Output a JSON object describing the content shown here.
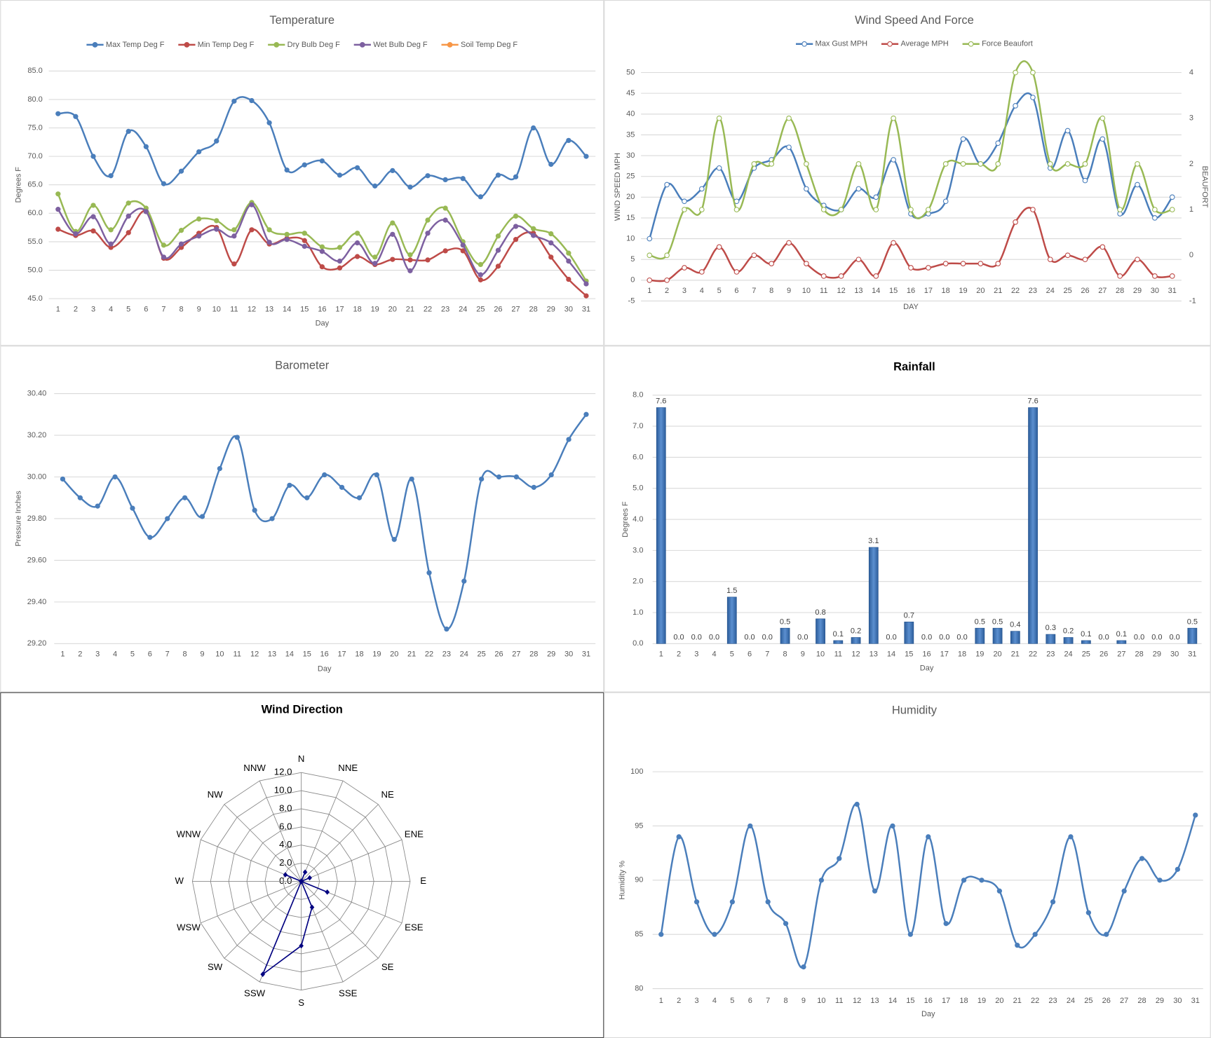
{
  "chart_data": [
    {
      "type": "line",
      "title": "Temperature",
      "x_label": "Day",
      "y_label": "Degrees F",
      "legend": "top",
      "grid": true,
      "categories": [
        1,
        2,
        3,
        4,
        5,
        6,
        7,
        8,
        9,
        10,
        11,
        12,
        13,
        14,
        15,
        16,
        17,
        18,
        19,
        20,
        21,
        22,
        23,
        24,
        25,
        26,
        27,
        28,
        29,
        30,
        31
      ],
      "ylim": [
        45,
        85
      ],
      "yticks": [
        {
          "value": 45,
          "label": "45.0"
        },
        {
          "value": 50,
          "label": "50.0"
        },
        {
          "value": 55,
          "label": "55.0"
        },
        {
          "value": 60,
          "label": "60.0"
        },
        {
          "value": 65,
          "label": "65.0"
        },
        {
          "value": 70,
          "label": "70.0"
        },
        {
          "value": 75,
          "label": "75.0"
        },
        {
          "value": 80,
          "label": "80.0"
        },
        {
          "value": 85,
          "label": "85.0"
        }
      ],
      "series": [
        {
          "name": "Max Temp Deg F",
          "color": "#4a7ebb",
          "values": [
            77.5,
            77.0,
            70.0,
            66.6,
            74.4,
            71.7,
            65.2,
            67.4,
            70.8,
            72.7,
            79.7,
            79.8,
            75.9,
            67.6,
            68.5,
            69.2,
            66.7,
            68.0,
            64.8,
            67.5,
            64.6,
            66.6,
            65.9,
            66.1,
            62.9,
            66.7,
            66.4,
            75.0,
            68.6,
            72.8,
            70.0
          ]
        },
        {
          "name": "Min Temp Deg F",
          "color": "#be4b48",
          "values": [
            57.2,
            56.1,
            56.9,
            54.0,
            56.6,
            60.3,
            52.1,
            54.0,
            56.5,
            57.5,
            51.1,
            57.1,
            54.6,
            55.6,
            55.2,
            50.6,
            50.4,
            52.4,
            51.0,
            51.9,
            51.8,
            51.8,
            53.4,
            53.4,
            48.3,
            50.7,
            55.4,
            56.5,
            52.3,
            48.4,
            45.5
          ]
        },
        {
          "name": "Dry Bulb Deg F",
          "color": "#98b954",
          "values": [
            63.4,
            56.8,
            61.4,
            57.1,
            61.8,
            60.9,
            54.4,
            57.0,
            59.0,
            58.7,
            57.1,
            61.9,
            57.1,
            56.3,
            56.5,
            54.1,
            54.0,
            56.5,
            52.3,
            58.3,
            52.7,
            58.8,
            60.9,
            55.0,
            51.0,
            56.0,
            59.5,
            57.3,
            56.4,
            53.0,
            48.1
          ]
        },
        {
          "name": "Wet Bulb Deg F",
          "color": "#7d60a0",
          "values": [
            60.7,
            56.4,
            59.4,
            54.6,
            59.5,
            60.3,
            52.3,
            54.6,
            56.0,
            57.2,
            56.0,
            61.5,
            54.9,
            55.4,
            54.2,
            53.3,
            51.6,
            54.8,
            51.2,
            56.3,
            49.9,
            56.5,
            58.8,
            54.4,
            49.2,
            53.5,
            57.7,
            56.1,
            54.8,
            51.6,
            47.6
          ]
        },
        {
          "name": "Soil Temp Deg F",
          "color": "#f79646",
          "values": [
            null,
            null,
            null,
            null,
            null,
            null,
            null,
            null,
            null,
            null,
            null,
            null,
            null,
            null,
            null,
            null,
            null,
            null,
            null,
            null,
            null,
            null,
            null,
            null,
            null,
            null,
            null,
            null,
            null,
            null,
            null
          ]
        }
      ]
    },
    {
      "type": "line",
      "title": "Wind Speed And Force",
      "x_label": "DAY",
      "y_label": "WIND SPEED MPH",
      "y2_label": "BEAUFORT",
      "legend": "top",
      "grid": true,
      "categories": [
        1,
        2,
        3,
        4,
        5,
        6,
        7,
        8,
        9,
        10,
        11,
        12,
        13,
        14,
        15,
        16,
        17,
        18,
        19,
        20,
        21,
        22,
        23,
        24,
        25,
        26,
        27,
        28,
        29,
        30,
        31
      ],
      "ylim": [
        -5,
        50
      ],
      "yticks": [
        -5,
        0,
        5,
        10,
        15,
        20,
        25,
        30,
        35,
        40,
        45,
        50
      ],
      "y2lim": [
        -1,
        4
      ],
      "y2ticks": [
        -1,
        0,
        1,
        2,
        3,
        4
      ],
      "series": [
        {
          "name": "Max Gust MPH",
          "color": "#4a7ebb",
          "values": [
            10,
            23,
            19,
            22,
            27,
            19,
            27,
            29,
            32,
            22,
            18,
            17,
            22,
            20,
            29,
            16,
            16,
            19,
            34,
            28,
            33,
            42,
            44,
            27,
            36,
            24,
            34,
            16,
            23,
            15,
            20
          ]
        },
        {
          "name": "Average MPH",
          "color": "#be4b48",
          "values": [
            0,
            0,
            3,
            2,
            8,
            2,
            6,
            4,
            9,
            4,
            1,
            1,
            5,
            1,
            9,
            3,
            3,
            4,
            4,
            4,
            4,
            14,
            17,
            5,
            6,
            5,
            8,
            1,
            5,
            1,
            1
          ]
        },
        {
          "name": "Force Beaufort",
          "color": "#98b954",
          "axis": "y2",
          "values": [
            0,
            0,
            1,
            1,
            3,
            1,
            2,
            2,
            3,
            2,
            1,
            1,
            2,
            1,
            3,
            1,
            1,
            2,
            2,
            2,
            2,
            4,
            4,
            2,
            2,
            2,
            3,
            1,
            2,
            1,
            1
          ]
        }
      ]
    },
    {
      "type": "line",
      "title": "Barometer",
      "x_label": "Day",
      "y_label": "Pressure Inches",
      "grid": true,
      "categories": [
        1,
        2,
        3,
        4,
        5,
        6,
        7,
        8,
        9,
        10,
        11,
        12,
        13,
        14,
        15,
        16,
        17,
        18,
        19,
        20,
        21,
        22,
        23,
        24,
        25,
        26,
        27,
        28,
        29,
        30,
        31
      ],
      "ylim": [
        29.2,
        30.4
      ],
      "yticks": [
        {
          "value": 29.2,
          "label": "29.20"
        },
        {
          "value": 29.4,
          "label": "29.40"
        },
        {
          "value": 29.6,
          "label": "29.60"
        },
        {
          "value": 29.8,
          "label": "29.80"
        },
        {
          "value": 30,
          "label": "30.00"
        },
        {
          "value": 30.2,
          "label": "30.20"
        },
        {
          "value": 30.4,
          "label": "30.40"
        }
      ],
      "series": [
        {
          "name": "Pressure",
          "color": "#4a7ebb",
          "values": [
            29.99,
            29.9,
            29.86,
            30.0,
            29.85,
            29.71,
            29.8,
            29.9,
            29.81,
            30.04,
            30.19,
            29.84,
            29.8,
            29.96,
            29.9,
            30.01,
            29.95,
            29.9,
            30.01,
            29.7,
            29.99,
            29.54,
            29.27,
            29.5,
            29.99,
            30.0,
            30.0,
            29.95,
            30.01,
            30.18,
            30.3
          ]
        }
      ]
    },
    {
      "type": "bar",
      "title": "Rainfall",
      "x_label": "Day",
      "y_label": "Degrees F",
      "color": "#3a6fb0",
      "categories": [
        1,
        2,
        3,
        4,
        5,
        6,
        7,
        8,
        9,
        10,
        11,
        12,
        13,
        14,
        15,
        16,
        17,
        18,
        19,
        20,
        21,
        22,
        23,
        24,
        25,
        26,
        27,
        28,
        29,
        30,
        31
      ],
      "ylim": [
        0,
        8
      ],
      "yticks": [
        {
          "value": 0,
          "label": "0.0"
        },
        {
          "value": 1,
          "label": "1.0"
        },
        {
          "value": 2,
          "label": "2.0"
        },
        {
          "value": 3,
          "label": "3.0"
        },
        {
          "value": 4,
          "label": "4.0"
        },
        {
          "value": 5,
          "label": "5.0"
        },
        {
          "value": 6,
          "label": "6.0"
        },
        {
          "value": 7,
          "label": "7.0"
        },
        {
          "value": 8,
          "label": "8.0"
        }
      ],
      "values": [
        7.6,
        0,
        0,
        0,
        1.5,
        0,
        0,
        0.5,
        0,
        0.8,
        0.1,
        0.2,
        3.1,
        0,
        0.7,
        0,
        0,
        0,
        0.5,
        0.5,
        0.4,
        7.6,
        0.3,
        0.2,
        0.1,
        0,
        0.1,
        0,
        0,
        0,
        0.5
      ],
      "value_labels": [
        "7.6",
        "0.0",
        "0.0",
        "0.0",
        "1.5",
        "0.0",
        "0.0",
        "0.5",
        "0.0",
        "0.8",
        "0.1",
        "0.2",
        "3.1",
        "0.0",
        "0.7",
        "0.0",
        "0.0",
        "0.0",
        "0.5",
        "0.5",
        "0.4",
        "7.6",
        "0.3",
        "0.2",
        "0.1",
        "0.0",
        "0.1",
        "0.0",
        "0.0",
        "0.0",
        "0.5"
      ]
    },
    {
      "type": "radar",
      "title": "Wind Direction",
      "color": "#000080",
      "categories": [
        "N",
        "NNE",
        "NE",
        "ENE",
        "E",
        "ESE",
        "SE",
        "SSE",
        "S",
        "SSW",
        "SW",
        "WSW",
        "W",
        "WNW",
        "NW",
        "NNW"
      ],
      "values": [
        0,
        1.1,
        0,
        1.0,
        0,
        3.1,
        0,
        3.1,
        7.1,
        11.1,
        0,
        0,
        0,
        1.9,
        0,
        0
      ],
      "rlim": [
        0,
        12
      ],
      "rticks": [
        {
          "value": 0,
          "label": "0.0"
        },
        {
          "value": 2,
          "label": "2.0"
        },
        {
          "value": 4,
          "label": "4.0"
        },
        {
          "value": 6,
          "label": "6.0"
        },
        {
          "value": 8,
          "label": "8.0"
        },
        {
          "value": 10,
          "label": "10.0"
        },
        {
          "value": 12,
          "label": "12.0"
        }
      ]
    },
    {
      "type": "line",
      "title": "Humidity",
      "x_label": "Day",
      "y_label": "Humidity %",
      "grid": true,
      "categories": [
        1,
        2,
        3,
        4,
        5,
        6,
        7,
        8,
        9,
        10,
        11,
        12,
        13,
        14,
        15,
        16,
        17,
        18,
        19,
        20,
        21,
        22,
        23,
        24,
        25,
        26,
        27,
        28,
        29,
        30,
        31
      ],
      "ylim": [
        80,
        100
      ],
      "yticks": [
        80,
        85,
        90,
        95,
        100
      ],
      "series": [
        {
          "name": "Humidity",
          "color": "#4a7ebb",
          "values": [
            85,
            94,
            88,
            85,
            88,
            95,
            88,
            86,
            82,
            90,
            92,
            97,
            89,
            95,
            85,
            94,
            86,
            90,
            90,
            89,
            84,
            85,
            88,
            94,
            87,
            85,
            89,
            92,
            90,
            91,
            96
          ]
        }
      ]
    }
  ]
}
